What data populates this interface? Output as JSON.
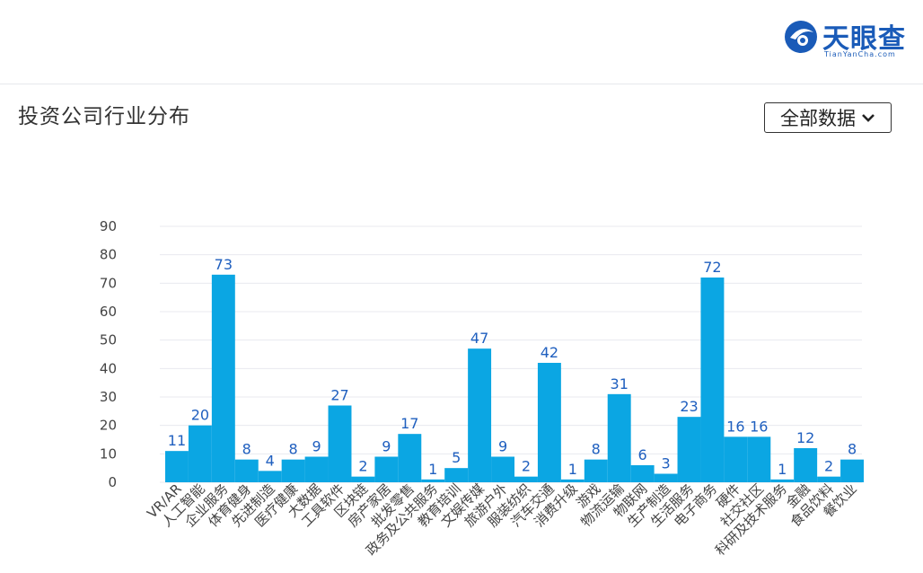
{
  "logo": {
    "name": "天眼查",
    "sub": "TianYanCha.com"
  },
  "panel": {
    "title": "投资公司行业分布"
  },
  "filter": {
    "selected": "全部数据",
    "icon": "chevron-down-icon"
  },
  "colors": {
    "bar": "#0ba6e3",
    "label": "#1f5fbf",
    "axis": "#444444",
    "grid": "#e8eaef",
    "brand": "#1a5bb8"
  },
  "chart_data": {
    "type": "bar",
    "ylim": [
      0,
      90
    ],
    "yticks": [
      0,
      10,
      20,
      30,
      40,
      50,
      60,
      70,
      80,
      90
    ],
    "grid": true,
    "title": "",
    "xlabel": "",
    "ylabel": "",
    "categories": [
      "VR/AR",
      "人工智能",
      "企业服务",
      "体育健身",
      "先进制造",
      "医疗健康",
      "大数据",
      "工具软件",
      "区块链",
      "房产家居",
      "批发零售",
      "政务及公共服务",
      "教育培训",
      "文娱传媒",
      "旅游户外",
      "服装纺织",
      "汽车交通",
      "消费升级",
      "游戏",
      "物流运输",
      "物联网",
      "生产制造",
      "生活服务",
      "电子商务",
      "硬件",
      "社交社区",
      "科研及技术服务",
      "金融",
      "食品饮料",
      "餐饮业"
    ],
    "values": [
      11,
      20,
      73,
      8,
      4,
      8,
      9,
      27,
      2,
      9,
      17,
      1,
      5,
      47,
      9,
      2,
      42,
      1,
      8,
      31,
      6,
      3,
      23,
      72,
      16,
      16,
      1,
      12,
      2,
      8
    ]
  }
}
